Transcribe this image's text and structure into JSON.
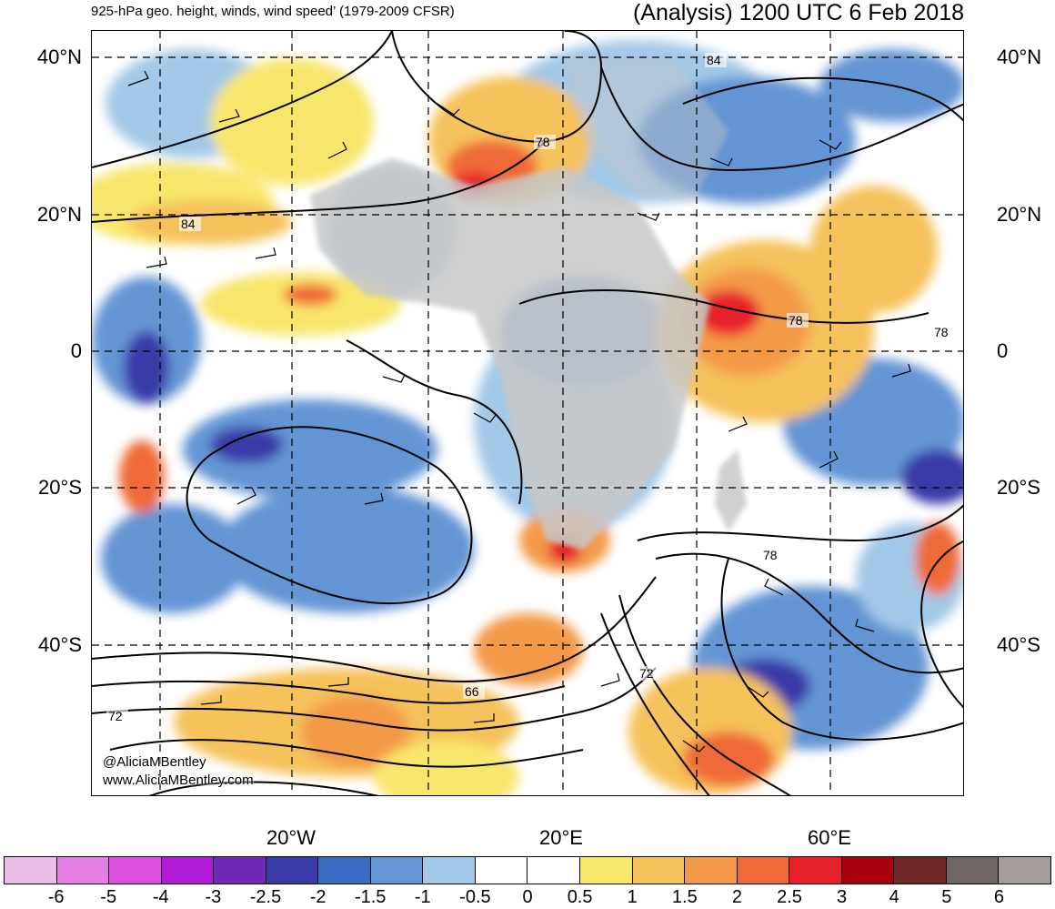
{
  "header": {
    "title_left": "925-hPa geo. height, winds, wind speed’ (1979-2009 CFSR)",
    "title_right": "(Analysis) 1200 UTC 6 Feb 2018"
  },
  "map": {
    "lat_labels_left": [
      "40°N",
      "20°N",
      "0",
      "20°S",
      "40°S"
    ],
    "lat_labels_right": [
      "40°N",
      "20°N",
      "0",
      "20°S",
      "40°S"
    ],
    "lon_labels": [
      "20°W",
      "20°E",
      "60°E"
    ],
    "contour_labels": [
      "84",
      "78",
      "84",
      "78",
      "78",
      "78",
      "72",
      "66",
      "72"
    ],
    "credit_handle": "@AliciaMBentley",
    "credit_url": "www.AliciaMBentley.com"
  },
  "colorbar": {
    "colors": [
      "#ebbde6",
      "#e47fe5",
      "#dc4fdf",
      "#b01bd7",
      "#6f28b8",
      "#3a3aa8",
      "#3a6bc2",
      "#6495d4",
      "#a3c9e8",
      "#ffffff",
      "#ffffff",
      "#f8e66c",
      "#f5c25c",
      "#f39a4a",
      "#ef6a38",
      "#e8202a",
      "#a8000c",
      "#6e2828",
      "#6f6563",
      "#a59c9c"
    ],
    "labels": [
      "-6",
      "-5",
      "-4",
      "-3",
      "-2.5",
      "-2",
      "-1.5",
      "-1",
      "-0.5",
      "0",
      "0.5",
      "1",
      "1.5",
      "2",
      "2.5",
      "3",
      "4",
      "5",
      "6"
    ]
  }
}
